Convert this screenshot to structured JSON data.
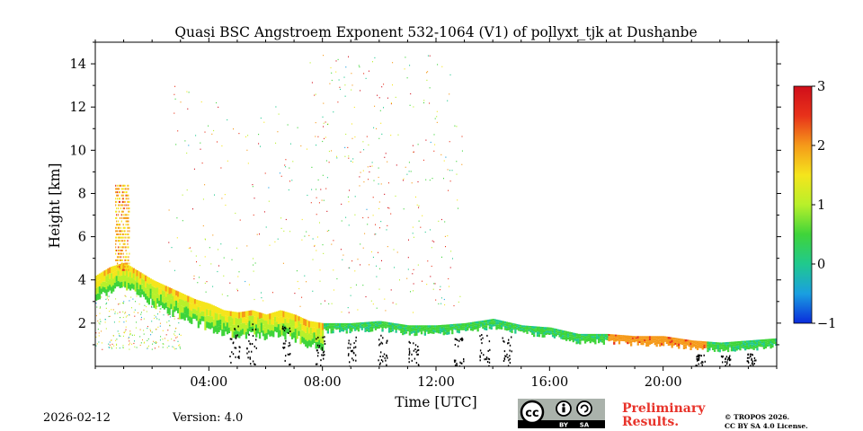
{
  "chart_data": {
    "type": "heatmap",
    "title": "Quasi BSC Angstroem Exponent 532-1064 (V1) of pollyxt_tjk at Dushanbe",
    "xlabel": "Time [UTC]",
    "ylabel": "Height [km]",
    "xlim_hours": [
      0,
      24
    ],
    "ylim_km": [
      0,
      15
    ],
    "x_ticks": [
      {
        "hour": 4,
        "label": "04:00"
      },
      {
        "hour": 8,
        "label": "08:00"
      },
      {
        "hour": 12,
        "label": "12:00"
      },
      {
        "hour": 16,
        "label": "16:00"
      },
      {
        "hour": 20,
        "label": "20:00"
      }
    ],
    "y_ticks": [
      {
        "km": 2,
        "label": "2"
      },
      {
        "km": 4,
        "label": "4"
      },
      {
        "km": 6,
        "label": "6"
      },
      {
        "km": 8,
        "label": "8"
      },
      {
        "km": 10,
        "label": "10"
      },
      {
        "km": 12,
        "label": "12"
      },
      {
        "km": 14,
        "label": "14"
      }
    ],
    "colorbar": {
      "range": [
        -1,
        3
      ],
      "ticks": [
        {
          "value": 3,
          "label": "3"
        },
        {
          "value": 2,
          "label": "2"
        },
        {
          "value": 1,
          "label": "1"
        },
        {
          "value": 0,
          "label": "0"
        },
        {
          "value": -1,
          "label": "−1"
        }
      ],
      "colors": [
        "#0a2bdc",
        "#1a9fe0",
        "#20c98e",
        "#3fd43a",
        "#b8f02a",
        "#f5e51c",
        "#f59a1a",
        "#e8321a",
        "#d00e1a"
      ]
    },
    "layer_top_km": [
      {
        "t": 0.0,
        "h": 4.2
      },
      {
        "t": 0.5,
        "h": 4.6
      },
      {
        "t": 1.0,
        "h": 4.8
      },
      {
        "t": 1.5,
        "h": 4.4
      },
      {
        "t": 2.0,
        "h": 4.0
      },
      {
        "t": 2.5,
        "h": 3.7
      },
      {
        "t": 3.0,
        "h": 3.4
      },
      {
        "t": 3.5,
        "h": 3.1
      },
      {
        "t": 4.0,
        "h": 2.9
      },
      {
        "t": 4.5,
        "h": 2.6
      },
      {
        "t": 5.0,
        "h": 2.5
      },
      {
        "t": 5.5,
        "h": 2.6
      },
      {
        "t": 6.0,
        "h": 2.4
      },
      {
        "t": 6.5,
        "h": 2.6
      },
      {
        "t": 7.0,
        "h": 2.4
      },
      {
        "t": 7.5,
        "h": 2.1
      },
      {
        "t": 8.0,
        "h": 2.0
      },
      {
        "t": 9.0,
        "h": 2.0
      },
      {
        "t": 10.0,
        "h": 2.1
      },
      {
        "t": 11.0,
        "h": 1.9
      },
      {
        "t": 12.0,
        "h": 1.9
      },
      {
        "t": 13.0,
        "h": 2.0
      },
      {
        "t": 14.0,
        "h": 2.2
      },
      {
        "t": 15.0,
        "h": 1.9
      },
      {
        "t": 16.0,
        "h": 1.8
      },
      {
        "t": 17.0,
        "h": 1.5
      },
      {
        "t": 18.0,
        "h": 1.5
      },
      {
        "t": 19.0,
        "h": 1.4
      },
      {
        "t": 20.0,
        "h": 1.4
      },
      {
        "t": 21.0,
        "h": 1.2
      },
      {
        "t": 22.0,
        "h": 1.1
      },
      {
        "t": 23.0,
        "h": 1.2
      },
      {
        "t": 24.0,
        "h": 1.3
      }
    ],
    "aerosol_plume": {
      "t_start": 0.7,
      "t_end": 1.2,
      "top_km": 8.5,
      "value": 1.8
    }
  },
  "footer": {
    "date": "2026-02-12",
    "version": "Version: 4.0",
    "preliminary_line1": "Preliminary",
    "preliminary_line2": "Results.",
    "copyright_line1": "© TROPOS 2026.",
    "copyright_line2": "CC BY SA 4.0 License.",
    "cc_text": "cc",
    "cc_by": "BY",
    "cc_sa": "SA"
  }
}
